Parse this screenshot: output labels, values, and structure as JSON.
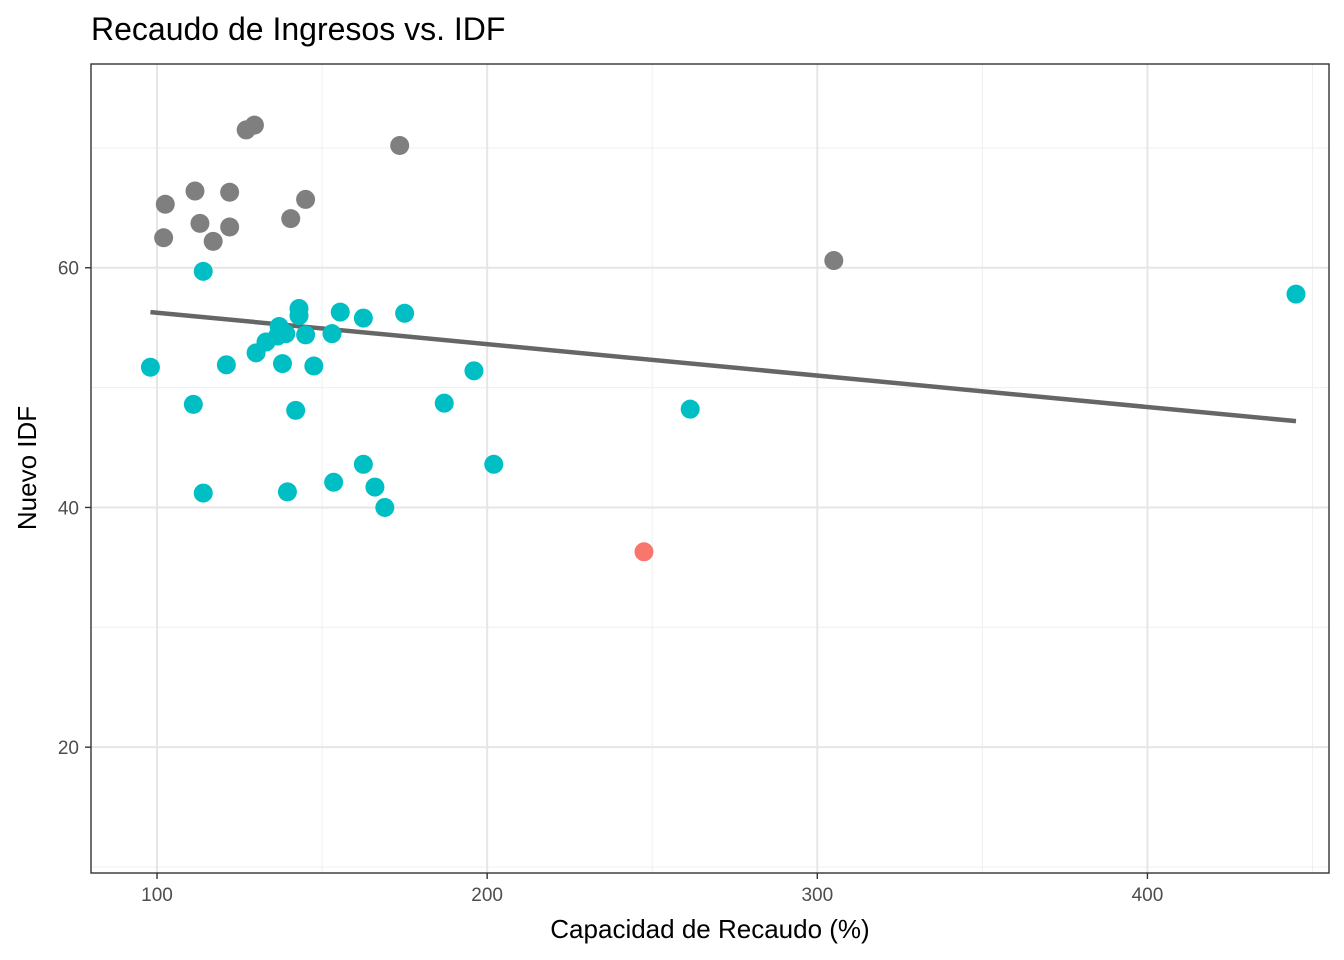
{
  "chart_data": {
    "type": "scatter",
    "title": "Recaudo de Ingresos vs. IDF",
    "xlabel": "Capacidad de Recaudo (%)",
    "ylabel": "Nuevo IDF",
    "xlim": [
      80,
      455
    ],
    "ylim": [
      9.5,
      77
    ],
    "x_ticks": [
      100,
      200,
      300,
      400
    ],
    "y_ticks": [
      20,
      40,
      60
    ],
    "grid": true,
    "legend": "none",
    "colors": {
      "red": "#F8766D",
      "teal": "#00BFC4",
      "gray": "#7F7F7F",
      "trend": "#666666"
    },
    "series": [
      {
        "color": "#7F7F7F",
        "points": [
          [
            127,
            71.5
          ],
          [
            129.5,
            71.9
          ],
          [
            173.5,
            70.2
          ],
          [
            111.5,
            66.4
          ],
          [
            122,
            66.3
          ],
          [
            102.5,
            65.3
          ],
          [
            145,
            65.7
          ],
          [
            113,
            63.7
          ],
          [
            122,
            63.4
          ],
          [
            140.5,
            64.1
          ],
          [
            102,
            62.5
          ],
          [
            117,
            62.2
          ],
          [
            305,
            60.6
          ]
        ]
      },
      {
        "color": "#00BFC4",
        "points": [
          [
            114,
            59.7
          ],
          [
            143,
            56.6
          ],
          [
            143,
            56.0
          ],
          [
            155.5,
            56.3
          ],
          [
            175,
            56.2
          ],
          [
            162.5,
            55.8
          ],
          [
            137,
            55.1
          ],
          [
            139,
            54.5
          ],
          [
            136.5,
            54.3
          ],
          [
            145,
            54.4
          ],
          [
            153,
            54.5
          ],
          [
            133,
            53.8
          ],
          [
            130,
            52.9
          ],
          [
            98,
            51.7
          ],
          [
            121,
            51.9
          ],
          [
            138,
            52.0
          ],
          [
            147.5,
            51.8
          ],
          [
            196,
            51.4
          ],
          [
            445,
            57.8
          ],
          [
            111,
            48.6
          ],
          [
            142,
            48.1
          ],
          [
            187,
            48.7
          ],
          [
            261.5,
            48.2
          ],
          [
            162.5,
            43.6
          ],
          [
            202,
            43.6
          ],
          [
            153.5,
            42.1
          ],
          [
            166,
            41.7
          ],
          [
            114,
            41.2
          ],
          [
            139.5,
            41.3
          ],
          [
            169,
            40.0
          ]
        ]
      },
      {
        "color": "#F8766D",
        "points": [
          [
            247.5,
            36.3
          ]
        ]
      }
    ],
    "trend_line": {
      "x": [
        98,
        445
      ],
      "y": [
        56.3,
        47.2
      ]
    }
  }
}
